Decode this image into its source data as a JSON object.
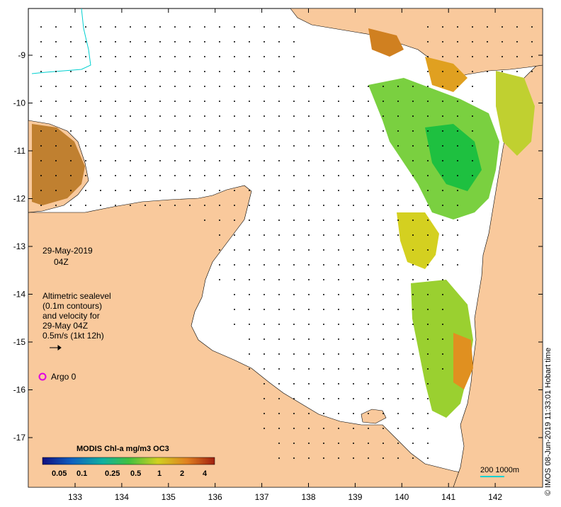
{
  "map": {
    "date_line": "29-May-2019",
    "time_line": "04Z",
    "legend_lines": [
      "Altimetric sealevel",
      "(0.1m contours)",
      "and velocity for",
      "29-May 04Z",
      "0.5m/s (1kt 12h)"
    ],
    "argo_label": "Argo 0",
    "colorbar_title": "MODIS Chl-a mg/m3 OC3",
    "colorbar_ticks": [
      "0.05",
      "0.1",
      "0.25",
      "0.5",
      "1",
      "2",
      "4"
    ],
    "scale_label": "200  1000m",
    "credit": "© IMOS 08-Jun-2019 11:33:01 Hobart time",
    "lat_labels": [
      "-9",
      "-10",
      "-11",
      "-12",
      "-13",
      "-14",
      "-15",
      "-16",
      "-17"
    ],
    "lon_labels": [
      "133",
      "134",
      "135",
      "136",
      "137",
      "138",
      "139",
      "140",
      "141",
      "142"
    ],
    "colors": {
      "land": "#f9c99c",
      "ocean": "#ffffff",
      "argo_marker": "#e000e0",
      "bathy_contour": "#00d0d0",
      "colorbar_stops": [
        "#101080",
        "#1060c0",
        "#10b0a0",
        "#40c040",
        "#d0d020",
        "#e08020",
        "#a02010"
      ]
    }
  }
}
